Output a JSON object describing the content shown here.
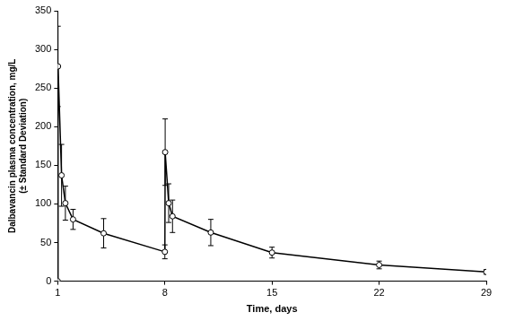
{
  "chart_data": {
    "type": "line",
    "x_label": "Time, days",
    "y_label": "Dalbavancin plasma concentration, mg/L\n(± Standard Deviation)",
    "x": [
      1,
      1.02,
      1.25,
      1.5,
      2,
      4,
      8,
      8.02,
      8.25,
      8.5,
      11,
      15,
      22,
      29
    ],
    "values": [
      0,
      278,
      137,
      101,
      80,
      62,
      38,
      167,
      101,
      84,
      63,
      37,
      21,
      12
    ],
    "error": [
      0,
      52,
      40,
      22,
      13,
      19,
      9,
      43,
      25,
      21,
      17,
      7,
      5,
      3
    ],
    "color": "#000000",
    "marker": "circle",
    "line_style": "solid",
    "xlim": [
      1,
      29
    ],
    "xticks": [
      1,
      8,
      15,
      22,
      29
    ],
    "ylim": [
      0,
      350
    ],
    "yticks": [
      0,
      50,
      100,
      150,
      200,
      250,
      300,
      350
    ],
    "grid": false
  }
}
